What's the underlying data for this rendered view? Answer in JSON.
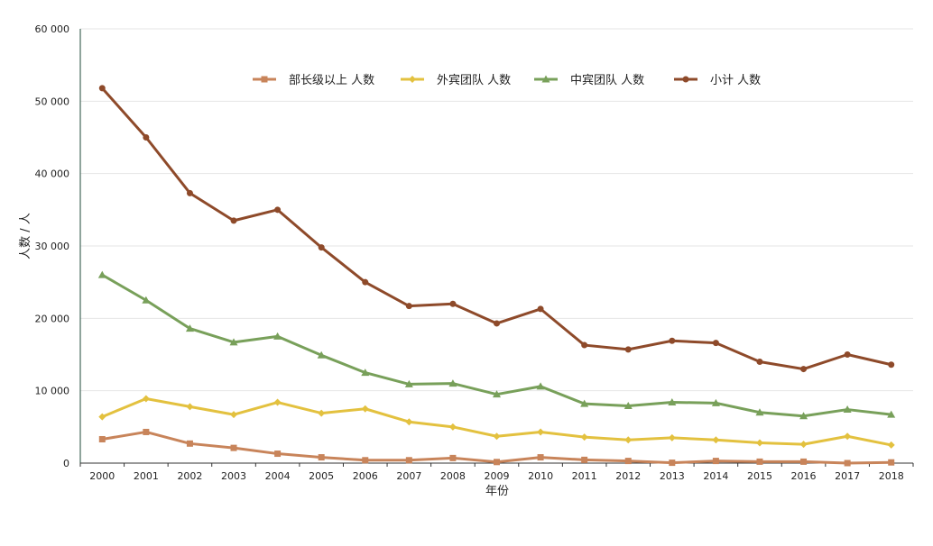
{
  "chart_data": {
    "type": "line",
    "title": "",
    "xlabel": "年份",
    "ylabel": "人数 / 人",
    "ylim": [
      0,
      60000
    ],
    "yticks": [
      0,
      10000,
      20000,
      30000,
      40000,
      50000,
      60000
    ],
    "ytick_labels": [
      "0",
      "10 000",
      "20 000",
      "30 000",
      "40 000",
      "50 000",
      "60 000"
    ],
    "grid": "horizontal",
    "legend_position": "top-center",
    "categories": [
      "2000",
      "2001",
      "2002",
      "2003",
      "2004",
      "2005",
      "2006",
      "2007",
      "2008",
      "2009",
      "2010",
      "2011",
      "2012",
      "2013",
      "2014",
      "2015",
      "2016",
      "2017",
      "2018"
    ],
    "series": [
      {
        "name": "部长级以上 人数",
        "color": "#c8845a",
        "marker": "square",
        "values": [
          3300,
          4300,
          2700,
          2100,
          1300,
          800,
          400,
          400,
          700,
          150,
          800,
          450,
          300,
          50,
          300,
          200,
          200,
          0,
          100
        ]
      },
      {
        "name": "外宾团队 人数",
        "color": "#e3c13f",
        "marker": "diamond",
        "values": [
          6400,
          8900,
          7800,
          6700,
          8400,
          6900,
          7500,
          5700,
          5000,
          3700,
          4300,
          3600,
          3200,
          3500,
          3200,
          2800,
          2600,
          3700,
          2500
        ]
      },
      {
        "name": "中宾团队 人数",
        "color": "#78a05a",
        "marker": "triangle",
        "values": [
          26000,
          22500,
          18600,
          16700,
          17500,
          14900,
          12500,
          10900,
          11000,
          9500,
          10600,
          8200,
          7900,
          8400,
          8300,
          7000,
          6500,
          7400,
          6700
        ]
      },
      {
        "name": "小计 人数",
        "color": "#8e4a2a",
        "marker": "circle",
        "values": [
          51800,
          45000,
          37300,
          33500,
          35000,
          29800,
          25000,
          21700,
          22000,
          19300,
          21300,
          16300,
          15700,
          16900,
          16600,
          14000,
          13000,
          15000,
          13600
        ]
      }
    ]
  }
}
